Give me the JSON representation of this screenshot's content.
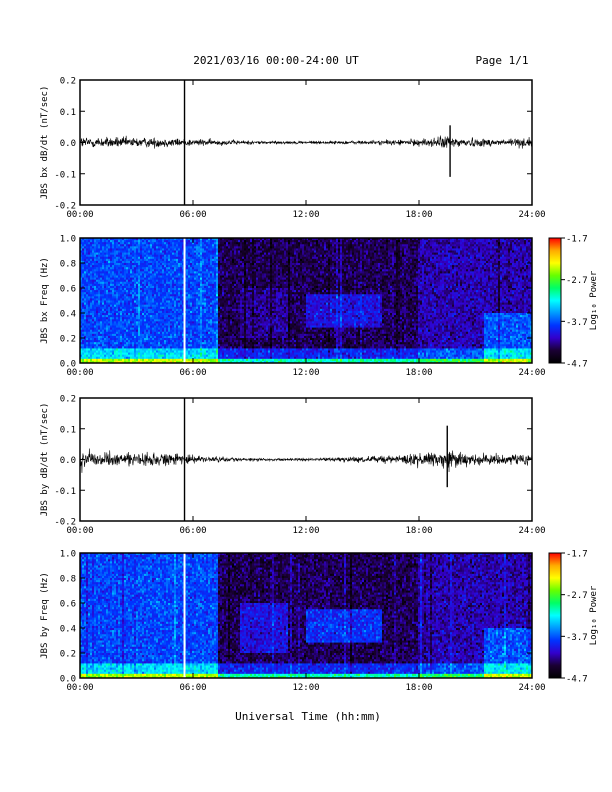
{
  "header": {
    "title": "2021/03/16  00:00-24:00 UT",
    "page": "Page 1/1"
  },
  "footer": {
    "xlabel": "Universal Time (hh:mm)"
  },
  "colorbar": {
    "label": "Log₁₀ Power",
    "ticks": [
      -1.7,
      -2.7,
      -3.7,
      -4.7
    ],
    "tick_labels": [
      "-1.7",
      "-2.7",
      "-3.7",
      "-4.7"
    ],
    "colors": [
      "#ff0000",
      "#ffaa00",
      "#ffff00",
      "#66ff00",
      "#00ff66",
      "#00ffff",
      "#0099ff",
      "#0033ff",
      "#3300cc",
      "#1a0033",
      "#000000"
    ]
  },
  "x_tick_labels": [
    "00:00",
    "06:00",
    "12:00",
    "18:00",
    "24:00"
  ],
  "chart_data": [
    {
      "type": "line",
      "ylabel": "JBS bx dB/dt (nT/sec)",
      "xlim": [
        0,
        24
      ],
      "ylim": [
        -0.2,
        0.2
      ],
      "y_ticks": [
        0.2,
        0.1,
        0.0,
        -0.1,
        -0.2
      ],
      "y_tick_labels": [
        "0.2",
        "0.1",
        "0.0",
        "-0.1",
        "-0.2"
      ],
      "series": [
        {
          "envelope_hours": [
            0,
            1,
            2,
            3,
            4,
            5,
            5.5,
            6,
            7,
            8,
            9,
            10,
            11,
            12,
            13,
            14,
            15,
            16,
            17,
            18,
            19,
            19.6,
            20,
            21,
            22,
            23,
            24
          ],
          "envelope_amplitude": [
            0.025,
            0.022,
            0.022,
            0.02,
            0.02,
            0.018,
            0.015,
            0.015,
            0.012,
            0.01,
            0.008,
            0.007,
            0.006,
            0.006,
            0.006,
            0.007,
            0.008,
            0.009,
            0.012,
            0.014,
            0.022,
            0.03,
            0.022,
            0.018,
            0.015,
            0.018,
            0.022
          ],
          "spikes": [
            {
              "x": 5.55,
              "y_max": 0.2,
              "y_min": -0.2
            },
            {
              "x": 19.65,
              "y_max": 0.055,
              "y_min": -0.11
            }
          ]
        }
      ]
    },
    {
      "type": "heatmap",
      "ylabel": "JBS bx Freq (Hz)",
      "xlim": [
        0,
        24
      ],
      "ylim": [
        0,
        1.0
      ],
      "y_ticks": [
        1.0,
        0.8,
        0.6,
        0.4,
        0.2,
        0.0
      ],
      "y_tick_labels": [
        "1.0",
        "0.8",
        "0.6",
        "0.4",
        "0.2",
        "0.0"
      ],
      "zlim": [
        -4.7,
        -1.7
      ]
    },
    {
      "type": "line",
      "ylabel": "JBS by dB/dt (nT/sec)",
      "xlim": [
        0,
        24
      ],
      "ylim": [
        -0.2,
        0.2
      ],
      "y_ticks": [
        0.2,
        0.1,
        0.0,
        -0.1,
        -0.2
      ],
      "y_tick_labels": [
        "0.2",
        "0.1",
        "0.0",
        "-0.1",
        "-0.2"
      ],
      "series": [
        {
          "envelope_hours": [
            0,
            1,
            2,
            3,
            4,
            5,
            5.5,
            6,
            7,
            8,
            9,
            10,
            11,
            12,
            13,
            14,
            15,
            16,
            17,
            18,
            19,
            19.6,
            20,
            21,
            22,
            23,
            24
          ],
          "envelope_amplitude": [
            0.04,
            0.03,
            0.028,
            0.025,
            0.024,
            0.025,
            0.025,
            0.015,
            0.012,
            0.008,
            0.006,
            0.005,
            0.005,
            0.006,
            0.007,
            0.01,
            0.012,
            0.014,
            0.018,
            0.028,
            0.035,
            0.05,
            0.03,
            0.025,
            0.02,
            0.022,
            0.03
          ],
          "spikes": [
            {
              "x": 5.55,
              "y_max": 0.2,
              "y_min": -0.2
            },
            {
              "x": 19.5,
              "y_max": 0.11,
              "y_min": -0.09
            }
          ]
        }
      ]
    },
    {
      "type": "heatmap",
      "ylabel": "JBS by Freq (Hz)",
      "xlim": [
        0,
        24
      ],
      "ylim": [
        0,
        1.0
      ],
      "y_ticks": [
        1.0,
        0.8,
        0.6,
        0.4,
        0.2,
        0.0
      ],
      "y_tick_labels": [
        "1.0",
        "0.8",
        "0.6",
        "0.4",
        "0.2",
        "0.0"
      ],
      "zlim": [
        -4.7,
        -1.7
      ]
    }
  ]
}
